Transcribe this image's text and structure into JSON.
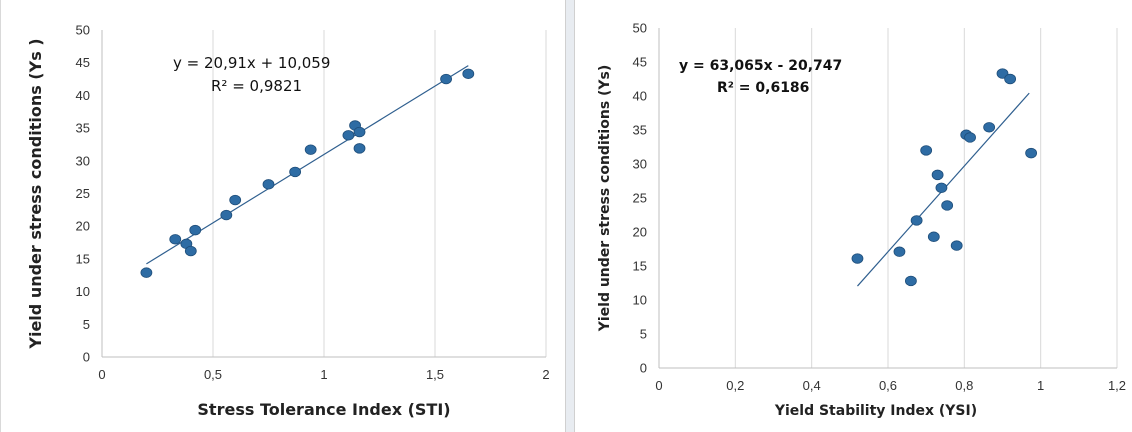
{
  "chart_data": [
    {
      "type": "scatter",
      "xlabel": "Stress Tolerance Index (STI)",
      "ylabel": "Yield under stress conditions  (Ys )",
      "xlim": [
        0,
        2
      ],
      "ylim": [
        0,
        50
      ],
      "x_ticks": [
        "0",
        "0,5",
        "1",
        "1,5",
        "2"
      ],
      "y_ticks": [
        "0",
        "5",
        "10",
        "15",
        "20",
        "25",
        "30",
        "35",
        "40",
        "45",
        "50"
      ],
      "grid": "vertical",
      "trendline": {
        "slope": 20.91,
        "intercept": 10.059,
        "x_range": [
          0.2,
          1.65
        ]
      },
      "equation": "y = 20,91x + 10,059",
      "r_squared": "R² = 0,9821",
      "color": "#2e6ca4",
      "x": [
        0.2,
        0.33,
        0.38,
        0.4,
        0.42,
        0.56,
        0.6,
        0.75,
        0.87,
        0.94,
        1.11,
        1.14,
        1.16,
        1.16,
        1.55,
        1.65
      ],
      "y": [
        12.9,
        18.0,
        17.3,
        16.2,
        19.4,
        21.7,
        24.0,
        26.4,
        28.3,
        31.7,
        33.9,
        35.4,
        31.9,
        34.4,
        42.5,
        43.3
      ]
    },
    {
      "type": "scatter",
      "xlabel": "Yield Stability Index (YSI)",
      "ylabel": "Yield under stress conditions (Ys)",
      "xlim": [
        0,
        1.2
      ],
      "ylim": [
        0,
        50
      ],
      "x_ticks": [
        "0",
        "0,2",
        "0,4",
        "0,6",
        "0,8",
        "1",
        "1,2"
      ],
      "y_ticks": [
        "0",
        "5",
        "10",
        "15",
        "20",
        "25",
        "30",
        "35",
        "40",
        "45",
        "50"
      ],
      "grid": "vertical",
      "trendline": {
        "slope": 63.065,
        "intercept": -20.747,
        "x_range": [
          0.52,
          0.97
        ]
      },
      "equation": "y = 63,065x - 20,747",
      "r_squared": "R² = 0,6186",
      "color": "#2e6ca4",
      "x": [
        0.52,
        0.63,
        0.66,
        0.675,
        0.7,
        0.72,
        0.73,
        0.74,
        0.755,
        0.78,
        0.805,
        0.815,
        0.865,
        0.9,
        0.92,
        0.975
      ],
      "y": [
        16.1,
        17.1,
        12.8,
        21.7,
        32.0,
        19.3,
        28.4,
        26.5,
        23.9,
        18.0,
        34.3,
        33.9,
        35.4,
        43.3,
        42.5,
        31.6
      ]
    }
  ]
}
